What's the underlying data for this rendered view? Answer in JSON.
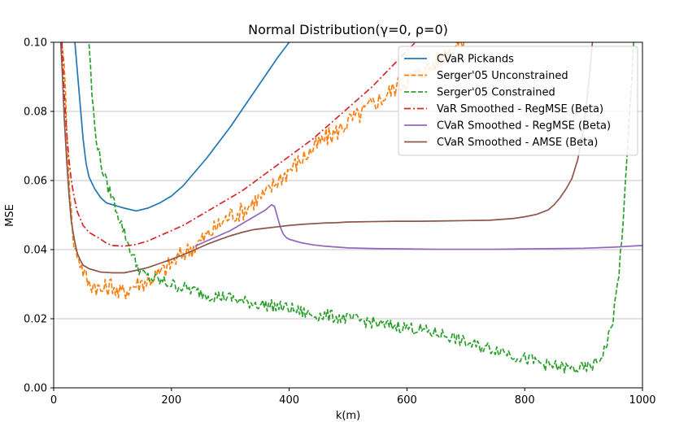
{
  "chart_data": {
    "type": "line",
    "title": "Normal Distribution(γ=0, ρ=0)",
    "xlabel": "k(m)",
    "ylabel": "MSE",
    "xlim": [
      0,
      1000
    ],
    "ylim": [
      0,
      0.1
    ],
    "xticks": [
      0,
      200,
      400,
      600,
      800,
      1000
    ],
    "yticks": [
      0.0,
      0.02,
      0.04,
      0.06,
      0.08,
      0.1
    ],
    "xtick_labels": [
      "0",
      "200",
      "400",
      "600",
      "800",
      "1000"
    ],
    "ytick_labels": [
      "0.00",
      "0.02",
      "0.04",
      "0.06",
      "0.08",
      "0.10"
    ],
    "grid": "horizontal",
    "legend_position": "top-right",
    "series": [
      {
        "name": "CVaR Pickands",
        "color": "#1f77b4",
        "style": "solid",
        "points": [
          [
            36,
            0.1
          ],
          [
            40,
            0.092
          ],
          [
            45,
            0.082
          ],
          [
            50,
            0.072
          ],
          [
            55,
            0.065
          ],
          [
            60,
            0.061
          ],
          [
            70,
            0.0575
          ],
          [
            80,
            0.055
          ],
          [
            90,
            0.0535
          ],
          [
            100,
            0.053
          ],
          [
            110,
            0.0525
          ],
          [
            120,
            0.052
          ],
          [
            140,
            0.0512
          ],
          [
            160,
            0.052
          ],
          [
            180,
            0.0535
          ],
          [
            200,
            0.0555
          ],
          [
            220,
            0.0585
          ],
          [
            240,
            0.0625
          ],
          [
            260,
            0.0665
          ],
          [
            280,
            0.071
          ],
          [
            300,
            0.0755
          ],
          [
            320,
            0.0805
          ],
          [
            340,
            0.0855
          ],
          [
            360,
            0.0905
          ],
          [
            380,
            0.0955
          ],
          [
            400,
            0.1
          ],
          [
            410,
            0.1025
          ]
        ]
      },
      {
        "name": "Serger'05 Unconstrained",
        "color": "#ff7f0e",
        "style": "dashed",
        "noisy": true,
        "noise_amp": 0.0028,
        "points": [
          [
            15,
            0.1
          ],
          [
            20,
            0.085
          ],
          [
            25,
            0.065
          ],
          [
            30,
            0.05
          ],
          [
            35,
            0.04
          ],
          [
            40,
            0.039
          ],
          [
            50,
            0.034
          ],
          [
            60,
            0.03
          ],
          [
            70,
            0.03
          ],
          [
            80,
            0.028
          ],
          [
            90,
            0.029
          ],
          [
            100,
            0.03
          ],
          [
            110,
            0.027
          ],
          [
            120,
            0.028
          ],
          [
            140,
            0.03
          ],
          [
            160,
            0.031
          ],
          [
            180,
            0.033
          ],
          [
            200,
            0.036
          ],
          [
            220,
            0.039
          ],
          [
            240,
            0.041
          ],
          [
            260,
            0.044
          ],
          [
            280,
            0.047
          ],
          [
            300,
            0.05
          ],
          [
            320,
            0.051
          ],
          [
            340,
            0.054
          ],
          [
            360,
            0.056
          ],
          [
            380,
            0.06
          ],
          [
            400,
            0.063
          ],
          [
            420,
            0.066
          ],
          [
            440,
            0.069
          ],
          [
            460,
            0.072
          ],
          [
            480,
            0.074
          ],
          [
            500,
            0.077
          ],
          [
            520,
            0.079
          ],
          [
            540,
            0.082
          ],
          [
            560,
            0.084
          ],
          [
            580,
            0.087
          ],
          [
            600,
            0.089
          ],
          [
            620,
            0.091
          ],
          [
            640,
            0.093
          ],
          [
            660,
            0.096
          ],
          [
            680,
            0.099
          ],
          [
            700,
            0.101
          ]
        ]
      },
      {
        "name": "Serger'05 Constrained",
        "color": "#2ca02c",
        "style": "dashed",
        "noisy": true,
        "noise_amp": 0.0018,
        "points": [
          [
            60,
            0.1
          ],
          [
            65,
            0.085
          ],
          [
            70,
            0.075
          ],
          [
            80,
            0.065
          ],
          [
            90,
            0.059
          ],
          [
            100,
            0.055
          ],
          [
            110,
            0.05
          ],
          [
            120,
            0.045
          ],
          [
            130,
            0.04
          ],
          [
            140,
            0.036
          ],
          [
            150,
            0.033
          ],
          [
            160,
            0.032
          ],
          [
            180,
            0.031
          ],
          [
            200,
            0.03
          ],
          [
            220,
            0.029
          ],
          [
            240,
            0.028
          ],
          [
            260,
            0.027
          ],
          [
            280,
            0.0265
          ],
          [
            300,
            0.026
          ],
          [
            320,
            0.025
          ],
          [
            340,
            0.0245
          ],
          [
            360,
            0.024
          ],
          [
            380,
            0.0235
          ],
          [
            400,
            0.023
          ],
          [
            420,
            0.022
          ],
          [
            440,
            0.021
          ],
          [
            460,
            0.021
          ],
          [
            480,
            0.0205
          ],
          [
            500,
            0.02
          ],
          [
            520,
            0.0195
          ],
          [
            540,
            0.019
          ],
          [
            560,
            0.018
          ],
          [
            580,
            0.018
          ],
          [
            600,
            0.0175
          ],
          [
            620,
            0.017
          ],
          [
            640,
            0.016
          ],
          [
            660,
            0.0155
          ],
          [
            680,
            0.0145
          ],
          [
            700,
            0.013
          ],
          [
            720,
            0.012
          ],
          [
            740,
            0.0115
          ],
          [
            760,
            0.011
          ],
          [
            780,
            0.0095
          ],
          [
            800,
            0.0085
          ],
          [
            820,
            0.0075
          ],
          [
            840,
            0.0065
          ],
          [
            860,
            0.006
          ],
          [
            880,
            0.0055
          ],
          [
            900,
            0.0055
          ],
          [
            910,
            0.006
          ],
          [
            920,
            0.007
          ],
          [
            930,
            0.009
          ],
          [
            940,
            0.013
          ],
          [
            950,
            0.02
          ],
          [
            960,
            0.033
          ],
          [
            970,
            0.055
          ],
          [
            980,
            0.085
          ],
          [
            985,
            0.1
          ]
        ]
      },
      {
        "name": "VaR Smoothed - RegMSE (Beta)",
        "color": "#d62728",
        "style": "dashdot",
        "points": [
          [
            14,
            0.1
          ],
          [
            18,
            0.085
          ],
          [
            22,
            0.074
          ],
          [
            26,
            0.066
          ],
          [
            30,
            0.06
          ],
          [
            35,
            0.055
          ],
          [
            40,
            0.051
          ],
          [
            50,
            0.047
          ],
          [
            60,
            0.045
          ],
          [
            70,
            0.044
          ],
          [
            80,
            0.043
          ],
          [
            90,
            0.0418
          ],
          [
            100,
            0.0412
          ],
          [
            120,
            0.041
          ],
          [
            140,
            0.0415
          ],
          [
            160,
            0.0425
          ],
          [
            180,
            0.044
          ],
          [
            200,
            0.0455
          ],
          [
            220,
            0.047
          ],
          [
            240,
            0.049
          ],
          [
            260,
            0.051
          ],
          [
            280,
            0.053
          ],
          [
            300,
            0.055
          ],
          [
            320,
            0.057
          ],
          [
            340,
            0.0595
          ],
          [
            360,
            0.062
          ],
          [
            380,
            0.0645
          ],
          [
            400,
            0.067
          ],
          [
            420,
            0.0695
          ],
          [
            440,
            0.072
          ],
          [
            460,
            0.075
          ],
          [
            480,
            0.078
          ],
          [
            500,
            0.081
          ],
          [
            520,
            0.084
          ],
          [
            540,
            0.087
          ],
          [
            560,
            0.0905
          ],
          [
            580,
            0.094
          ],
          [
            600,
            0.0975
          ],
          [
            620,
            0.101
          ]
        ]
      },
      {
        "name": "CVaR Smoothed - RegMSE (Beta)",
        "color": "#9467bd",
        "style": "solid",
        "points": [
          [
            240,
            0.041
          ],
          [
            260,
            0.0425
          ],
          [
            280,
            0.044
          ],
          [
            300,
            0.0455
          ],
          [
            320,
            0.0475
          ],
          [
            340,
            0.0495
          ],
          [
            360,
            0.0515
          ],
          [
            370,
            0.053
          ],
          [
            375,
            0.0525
          ],
          [
            380,
            0.0495
          ],
          [
            385,
            0.0465
          ],
          [
            390,
            0.0445
          ],
          [
            395,
            0.0435
          ],
          [
            400,
            0.043
          ],
          [
            420,
            0.042
          ],
          [
            440,
            0.0414
          ],
          [
            460,
            0.041
          ],
          [
            500,
            0.0405
          ],
          [
            550,
            0.0403
          ],
          [
            600,
            0.0402
          ],
          [
            650,
            0.0401
          ],
          [
            700,
            0.0401
          ],
          [
            750,
            0.0401
          ],
          [
            800,
            0.0402
          ],
          [
            850,
            0.0403
          ],
          [
            900,
            0.0404
          ],
          [
            950,
            0.0407
          ],
          [
            1000,
            0.0412
          ]
        ]
      },
      {
        "name": "CVaR Smoothed - AMSE (Beta)",
        "color": "#8c564b",
        "style": "solid",
        "points": [
          [
            12,
            0.1
          ],
          [
            15,
            0.09
          ],
          [
            18,
            0.078
          ],
          [
            22,
            0.066
          ],
          [
            26,
            0.056
          ],
          [
            30,
            0.048
          ],
          [
            35,
            0.043
          ],
          [
            40,
            0.039
          ],
          [
            45,
            0.037
          ],
          [
            50,
            0.0355
          ],
          [
            60,
            0.0345
          ],
          [
            70,
            0.034
          ],
          [
            80,
            0.0335
          ],
          [
            100,
            0.0333
          ],
          [
            120,
            0.0333
          ],
          [
            140,
            0.034
          ],
          [
            160,
            0.0348
          ],
          [
            180,
            0.036
          ],
          [
            200,
            0.0372
          ],
          [
            220,
            0.0385
          ],
          [
            240,
            0.04
          ],
          [
            260,
            0.0415
          ],
          [
            280,
            0.0428
          ],
          [
            300,
            0.044
          ],
          [
            320,
            0.045
          ],
          [
            340,
            0.0458
          ],
          [
            360,
            0.0462
          ],
          [
            380,
            0.0466
          ],
          [
            400,
            0.047
          ],
          [
            420,
            0.0473
          ],
          [
            440,
            0.0475
          ],
          [
            460,
            0.0477
          ],
          [
            480,
            0.0478
          ],
          [
            500,
            0.048
          ],
          [
            540,
            0.0481
          ],
          [
            580,
            0.0482
          ],
          [
            620,
            0.0482
          ],
          [
            660,
            0.0483
          ],
          [
            700,
            0.0484
          ],
          [
            740,
            0.0485
          ],
          [
            780,
            0.049
          ],
          [
            800,
            0.0495
          ],
          [
            820,
            0.0502
          ],
          [
            840,
            0.0515
          ],
          [
            850,
            0.053
          ],
          [
            860,
            0.055
          ],
          [
            870,
            0.0575
          ],
          [
            880,
            0.0605
          ],
          [
            890,
            0.066
          ],
          [
            900,
            0.075
          ],
          [
            910,
            0.09
          ],
          [
            915,
            0.1
          ]
        ]
      }
    ]
  }
}
